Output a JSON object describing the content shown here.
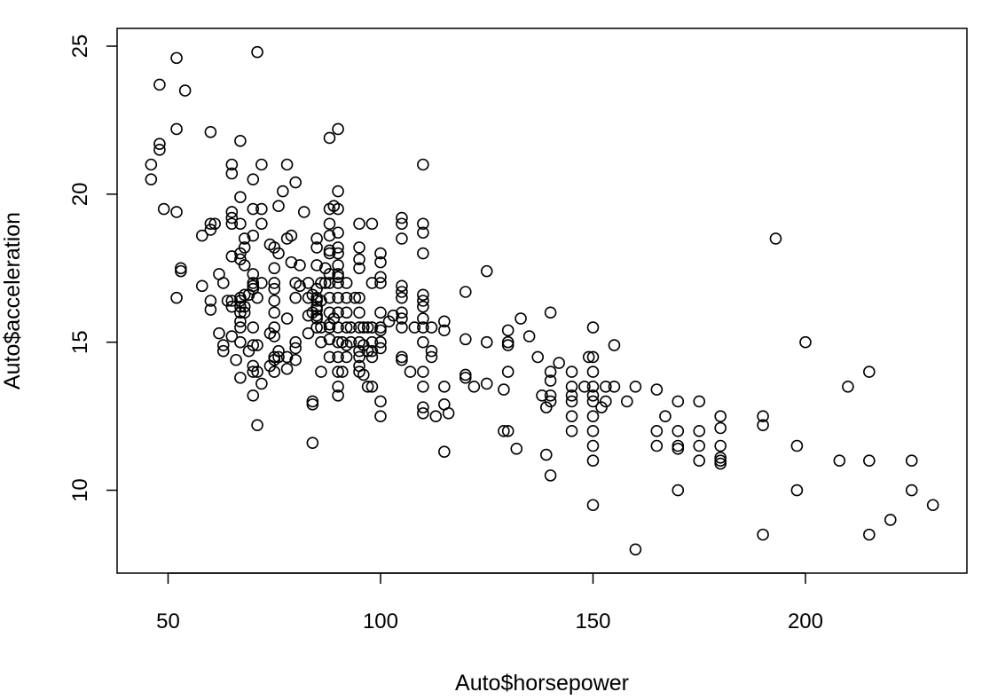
{
  "chart_data": {
    "type": "scatter",
    "xlabel": "Auto$horsepower",
    "ylabel": "Auto$acceleration",
    "xlim": [
      38,
      238
    ],
    "ylim": [
      7.2,
      25.6
    ],
    "xticks": [
      50,
      100,
      150,
      200
    ],
    "yticks": [
      10,
      15,
      20,
      25
    ],
    "grid": false,
    "marker": "open-circle",
    "points": [
      [
        46,
        21.0
      ],
      [
        46,
        20.5
      ],
      [
        48,
        23.7
      ],
      [
        48,
        21.7
      ],
      [
        48,
        21.5
      ],
      [
        49,
        19.5
      ],
      [
        52,
        24.6
      ],
      [
        52,
        22.2
      ],
      [
        52,
        19.4
      ],
      [
        52,
        16.5
      ],
      [
        53,
        17.5
      ],
      [
        53,
        17.4
      ],
      [
        54,
        23.5
      ],
      [
        58,
        18.6
      ],
      [
        58,
        16.9
      ],
      [
        60,
        22.1
      ],
      [
        60,
        19.0
      ],
      [
        60,
        18.8
      ],
      [
        60,
        16.4
      ],
      [
        60,
        16.1
      ],
      [
        61,
        19.0
      ],
      [
        62,
        17.3
      ],
      [
        62,
        15.3
      ],
      [
        63,
        17.0
      ],
      [
        63,
        14.9
      ],
      [
        63,
        14.7
      ],
      [
        64,
        16.4
      ],
      [
        65,
        21.0
      ],
      [
        65,
        20.7
      ],
      [
        65,
        19.4
      ],
      [
        65,
        19.2
      ],
      [
        65,
        19.0
      ],
      [
        65,
        17.9
      ],
      [
        65,
        16.4
      ],
      [
        65,
        16.2
      ],
      [
        65,
        15.2
      ],
      [
        66,
        14.4
      ],
      [
        67,
        21.8
      ],
      [
        67,
        19.9
      ],
      [
        67,
        19.0
      ],
      [
        67,
        18.0
      ],
      [
        67,
        17.8
      ],
      [
        67,
        16.5
      ],
      [
        67,
        16.4
      ],
      [
        67,
        16.2
      ],
      [
        67,
        16.0
      ],
      [
        67,
        15.7
      ],
      [
        67,
        15.5
      ],
      [
        67,
        15.0
      ],
      [
        67,
        13.8
      ],
      [
        68,
        18.5
      ],
      [
        68,
        18.2
      ],
      [
        68,
        17.6
      ],
      [
        68,
        16.6
      ],
      [
        68,
        16.2
      ],
      [
        68,
        16.0
      ],
      [
        69,
        16.6
      ],
      [
        69,
        14.7
      ],
      [
        70,
        20.5
      ],
      [
        70,
        19.5
      ],
      [
        70,
        18.6
      ],
      [
        70,
        17.3
      ],
      [
        70,
        17.0
      ],
      [
        70,
        16.9
      ],
      [
        70,
        16.8
      ],
      [
        70,
        15.5
      ],
      [
        70,
        14.9
      ],
      [
        70,
        14.2
      ],
      [
        70,
        14.0
      ],
      [
        70,
        13.2
      ],
      [
        71,
        24.8
      ],
      [
        71,
        16.5
      ],
      [
        71,
        14.9
      ],
      [
        71,
        14.0
      ],
      [
        71,
        12.2
      ],
      [
        72,
        21.0
      ],
      [
        72,
        19.5
      ],
      [
        72,
        19.0
      ],
      [
        72,
        17.0
      ],
      [
        72,
        13.6
      ],
      [
        74,
        18.3
      ],
      [
        74,
        15.3
      ],
      [
        74,
        14.2
      ],
      [
        75,
        18.2
      ],
      [
        75,
        17.5
      ],
      [
        75,
        17.0
      ],
      [
        75,
        16.8
      ],
      [
        75,
        16.4
      ],
      [
        75,
        16.0
      ],
      [
        75,
        15.5
      ],
      [
        75,
        15.2
      ],
      [
        75,
        14.5
      ],
      [
        75,
        14.4
      ],
      [
        75,
        14.0
      ],
      [
        76,
        19.6
      ],
      [
        76,
        18.0
      ],
      [
        76,
        14.7
      ],
      [
        76,
        14.5
      ],
      [
        77,
        20.1
      ],
      [
        78,
        21.0
      ],
      [
        78,
        18.5
      ],
      [
        78,
        15.8
      ],
      [
        78,
        14.5
      ],
      [
        78,
        14.1
      ],
      [
        79,
        18.6
      ],
      [
        79,
        17.7
      ],
      [
        80,
        20.4
      ],
      [
        80,
        17.0
      ],
      [
        80,
        16.5
      ],
      [
        80,
        15.0
      ],
      [
        80,
        14.8
      ],
      [
        80,
        14.4
      ],
      [
        81,
        17.6
      ],
      [
        81,
        16.9
      ],
      [
        82,
        19.4
      ],
      [
        83,
        17.0
      ],
      [
        83,
        16.5
      ],
      [
        83,
        15.9
      ],
      [
        83,
        15.3
      ],
      [
        84,
        16.6
      ],
      [
        84,
        16.0
      ],
      [
        84,
        13.0
      ],
      [
        84,
        12.9
      ],
      [
        84,
        11.6
      ],
      [
        85,
        18.5
      ],
      [
        85,
        18.2
      ],
      [
        85,
        17.6
      ],
      [
        85,
        16.8
      ],
      [
        85,
        16.5
      ],
      [
        85,
        16.4
      ],
      [
        85,
        16.2
      ],
      [
        85,
        16.1
      ],
      [
        85,
        15.9
      ],
      [
        85,
        15.8
      ],
      [
        85,
        15.5
      ],
      [
        86,
        17.0
      ],
      [
        86,
        16.4
      ],
      [
        86,
        15.5
      ],
      [
        86,
        15.0
      ],
      [
        86,
        14.0
      ],
      [
        87,
        17.5
      ],
      [
        87,
        17.0
      ],
      [
        88,
        21.9
      ],
      [
        88,
        19.5
      ],
      [
        88,
        19.0
      ],
      [
        88,
        18.6
      ],
      [
        88,
        18.1
      ],
      [
        88,
        18.0
      ],
      [
        88,
        17.3
      ],
      [
        88,
        17.0
      ],
      [
        88,
        16.5
      ],
      [
        88,
        16.0
      ],
      [
        88,
        15.6
      ],
      [
        88,
        15.5
      ],
      [
        88,
        15.1
      ],
      [
        88,
        14.5
      ],
      [
        89,
        19.6
      ],
      [
        89,
        15.8
      ],
      [
        90,
        22.2
      ],
      [
        90,
        20.1
      ],
      [
        90,
        19.5
      ],
      [
        90,
        18.7
      ],
      [
        90,
        18.2
      ],
      [
        90,
        18.0
      ],
      [
        90,
        17.6
      ],
      [
        90,
        17.3
      ],
      [
        90,
        17.2
      ],
      [
        90,
        17.0
      ],
      [
        90,
        16.5
      ],
      [
        90,
        16.0
      ],
      [
        90,
        15.5
      ],
      [
        90,
        15.0
      ],
      [
        90,
        14.5
      ],
      [
        90,
        14.0
      ],
      [
        90,
        13.5
      ],
      [
        90,
        13.2
      ],
      [
        91,
        15.0
      ],
      [
        91,
        14.0
      ],
      [
        92,
        17.0
      ],
      [
        92,
        16.5
      ],
      [
        92,
        16.0
      ],
      [
        92,
        15.5
      ],
      [
        92,
        14.9
      ],
      [
        92,
        14.5
      ],
      [
        93,
        15.5
      ],
      [
        93,
        15.0
      ],
      [
        94,
        16.5
      ],
      [
        95,
        19.0
      ],
      [
        95,
        18.2
      ],
      [
        95,
        17.8
      ],
      [
        95,
        17.5
      ],
      [
        95,
        16.5
      ],
      [
        95,
        16.0
      ],
      [
        95,
        15.5
      ],
      [
        95,
        15.0
      ],
      [
        95,
        14.7
      ],
      [
        95,
        14.5
      ],
      [
        95,
        14.2
      ],
      [
        95,
        14.0
      ],
      [
        96,
        15.5
      ],
      [
        96,
        14.9
      ],
      [
        96,
        13.9
      ],
      [
        97,
        15.5
      ],
      [
        97,
        14.7
      ],
      [
        97,
        13.5
      ],
      [
        98,
        19.0
      ],
      [
        98,
        17.0
      ],
      [
        98,
        15.5
      ],
      [
        98,
        15.0
      ],
      [
        98,
        14.7
      ],
      [
        98,
        14.5
      ],
      [
        98,
        13.5
      ],
      [
        100,
        18.0
      ],
      [
        100,
        17.7
      ],
      [
        100,
        17.2
      ],
      [
        100,
        17.0
      ],
      [
        100,
        16.0
      ],
      [
        100,
        15.5
      ],
      [
        100,
        15.4
      ],
      [
        100,
        15.0
      ],
      [
        100,
        14.8
      ],
      [
        100,
        13.0
      ],
      [
        100,
        12.5
      ],
      [
        102,
        15.7
      ],
      [
        103,
        15.9
      ],
      [
        105,
        19.2
      ],
      [
        105,
        19.0
      ],
      [
        105,
        18.5
      ],
      [
        105,
        16.9
      ],
      [
        105,
        16.7
      ],
      [
        105,
        16.5
      ],
      [
        105,
        16.0
      ],
      [
        105,
        15.8
      ],
      [
        105,
        15.5
      ],
      [
        105,
        14.5
      ],
      [
        105,
        14.4
      ],
      [
        107,
        14.0
      ],
      [
        108,
        15.5
      ],
      [
        110,
        21.0
      ],
      [
        110,
        19.0
      ],
      [
        110,
        18.7
      ],
      [
        110,
        18.0
      ],
      [
        110,
        16.6
      ],
      [
        110,
        16.4
      ],
      [
        110,
        16.2
      ],
      [
        110,
        15.8
      ],
      [
        110,
        15.5
      ],
      [
        110,
        15.0
      ],
      [
        110,
        14.0
      ],
      [
        110,
        13.5
      ],
      [
        110,
        12.8
      ],
      [
        110,
        12.6
      ],
      [
        112,
        15.5
      ],
      [
        112,
        14.7
      ],
      [
        112,
        14.5
      ],
      [
        113,
        12.5
      ],
      [
        115,
        15.7
      ],
      [
        115,
        15.4
      ],
      [
        115,
        13.5
      ],
      [
        115,
        12.9
      ],
      [
        115,
        11.3
      ],
      [
        116,
        12.6
      ],
      [
        120,
        16.7
      ],
      [
        120,
        15.1
      ],
      [
        120,
        13.9
      ],
      [
        120,
        13.8
      ],
      [
        122,
        13.5
      ],
      [
        125,
        17.4
      ],
      [
        125,
        15.0
      ],
      [
        125,
        13.6
      ],
      [
        129,
        13.4
      ],
      [
        129,
        12.0
      ],
      [
        130,
        15.4
      ],
      [
        130,
        15.0
      ],
      [
        130,
        14.9
      ],
      [
        130,
        14.0
      ],
      [
        130,
        12.0
      ],
      [
        132,
        11.4
      ],
      [
        133,
        15.8
      ],
      [
        135,
        15.2
      ],
      [
        137,
        14.5
      ],
      [
        138,
        13.2
      ],
      [
        139,
        12.8
      ],
      [
        139,
        11.2
      ],
      [
        140,
        16.0
      ],
      [
        140,
        14.0
      ],
      [
        140,
        13.7
      ],
      [
        140,
        13.2
      ],
      [
        140,
        13.0
      ],
      [
        140,
        10.5
      ],
      [
        142,
        14.3
      ],
      [
        145,
        14.0
      ],
      [
        145,
        13.5
      ],
      [
        145,
        13.2
      ],
      [
        145,
        13.0
      ],
      [
        145,
        12.5
      ],
      [
        145,
        12.0
      ],
      [
        148,
        13.5
      ],
      [
        149,
        14.5
      ],
      [
        150,
        15.5
      ],
      [
        150,
        14.5
      ],
      [
        150,
        14.0
      ],
      [
        150,
        13.5
      ],
      [
        150,
        13.2
      ],
      [
        150,
        13.0
      ],
      [
        150,
        12.5
      ],
      [
        150,
        12.0
      ],
      [
        150,
        11.5
      ],
      [
        150,
        11.0
      ],
      [
        150,
        9.5
      ],
      [
        152,
        12.8
      ],
      [
        153,
        13.5
      ],
      [
        153,
        13.0
      ],
      [
        155,
        14.9
      ],
      [
        155,
        13.5
      ],
      [
        158,
        13.0
      ],
      [
        160,
        13.5
      ],
      [
        160,
        8.0
      ],
      [
        165,
        13.4
      ],
      [
        165,
        12.0
      ],
      [
        165,
        11.5
      ],
      [
        167,
        12.5
      ],
      [
        170,
        13.0
      ],
      [
        170,
        12.0
      ],
      [
        170,
        11.5
      ],
      [
        170,
        11.4
      ],
      [
        170,
        10.0
      ],
      [
        175,
        13.0
      ],
      [
        175,
        12.0
      ],
      [
        175,
        11.5
      ],
      [
        175,
        11.0
      ],
      [
        180,
        12.5
      ],
      [
        180,
        12.1
      ],
      [
        180,
        11.5
      ],
      [
        180,
        11.1
      ],
      [
        180,
        11.0
      ],
      [
        180,
        10.9
      ],
      [
        190,
        12.5
      ],
      [
        190,
        12.2
      ],
      [
        190,
        8.5
      ],
      [
        193,
        18.5
      ],
      [
        198,
        11.5
      ],
      [
        198,
        10.0
      ],
      [
        200,
        15.0
      ],
      [
        208,
        11.0
      ],
      [
        210,
        13.5
      ],
      [
        215,
        14.0
      ],
      [
        215,
        11.0
      ],
      [
        215,
        8.5
      ],
      [
        220,
        9.0
      ],
      [
        225,
        11.0
      ],
      [
        225,
        10.0
      ],
      [
        230,
        9.5
      ]
    ]
  }
}
